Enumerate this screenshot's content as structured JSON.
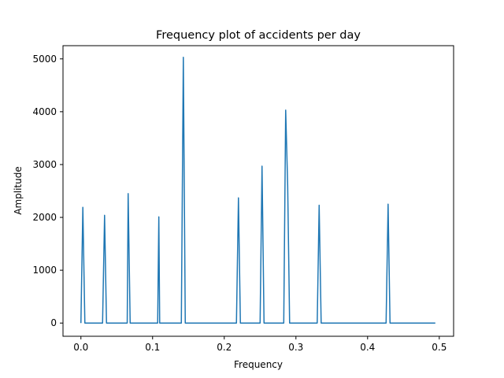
{
  "chart_data": {
    "type": "line",
    "title": "Frequency plot of accidents per day",
    "xlabel": "Frequency",
    "ylabel": "Amplitude",
    "xlim": [
      -0.025,
      0.52
    ],
    "ylim": [
      -250,
      5250
    ],
    "xticks": [
      0.0,
      0.1,
      0.2,
      0.3,
      0.4,
      0.5
    ],
    "xtick_labels": [
      "0.0",
      "0.1",
      "0.2",
      "0.3",
      "0.4",
      "0.5"
    ],
    "yticks": [
      0,
      1000,
      2000,
      3000,
      4000,
      5000
    ],
    "ytick_labels": [
      "0",
      "1000",
      "2000",
      "3000",
      "4000",
      "5000"
    ],
    "grid": false,
    "series": [
      {
        "color": "#1f77b4",
        "x": [
          0.0,
          0.0027,
          0.0055,
          0.0302,
          0.0302,
          0.033,
          0.0357,
          0.0646,
          0.0659,
          0.0687,
          0.0714,
          0.1071,
          0.1087,
          0.1099,
          0.1126,
          0.1401,
          0.1429,
          0.1456,
          0.217,
          0.2198,
          0.2225,
          0.25,
          0.2527,
          0.2555,
          0.283,
          0.2857,
          0.2885,
          0.2912,
          0.3297,
          0.3324,
          0.3352,
          0.4258,
          0.4286,
          0.4313,
          0.4945
        ],
        "y": [
          0,
          2190,
          0,
          0,
          0,
          2040,
          0,
          0,
          2450,
          0,
          0,
          0,
          2010,
          0,
          0,
          0,
          5030,
          0,
          0,
          2370,
          0,
          0,
          2970,
          0,
          0,
          4030,
          2600,
          0,
          0,
          2230,
          0,
          0,
          2250,
          0,
          0
        ]
      }
    ]
  }
}
